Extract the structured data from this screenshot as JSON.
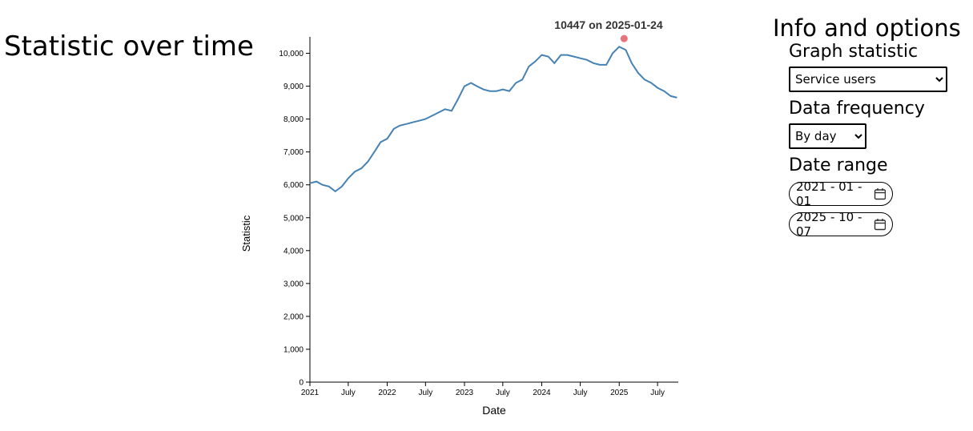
{
  "title": "Statistic over time",
  "panel": {
    "heading": "Info and options",
    "statistic_label": "Graph statistic",
    "statistic_value": "Service users",
    "frequency_label": "Data frequency",
    "frequency_value": "By day",
    "range_label": "Date range",
    "start_date": "2021 - 01 - 01",
    "end_date": "2025 - 10 - 07"
  },
  "chart_data": {
    "type": "line",
    "x_label": "Date",
    "y_label": "Statistic",
    "color": "#4682b4",
    "x": [
      "2021-01",
      "2021-02",
      "2021-03",
      "2021-04",
      "2021-05",
      "2021-06",
      "2021-07",
      "2021-08",
      "2021-09",
      "2021-10",
      "2021-11",
      "2021-12",
      "2022-01",
      "2022-02",
      "2022-03",
      "2022-04",
      "2022-05",
      "2022-06",
      "2022-07",
      "2022-08",
      "2022-09",
      "2022-10",
      "2022-11",
      "2022-12",
      "2023-01",
      "2023-02",
      "2023-03",
      "2023-04",
      "2023-05",
      "2023-06",
      "2023-07",
      "2023-08",
      "2023-09",
      "2023-10",
      "2023-11",
      "2023-12",
      "2024-01",
      "2024-02",
      "2024-03",
      "2024-04",
      "2024-05",
      "2024-06",
      "2024-07",
      "2024-08",
      "2024-09",
      "2024-10",
      "2024-11",
      "2024-12",
      "2025-01",
      "2025-02",
      "2025-03",
      "2025-04",
      "2025-05",
      "2025-06",
      "2025-07",
      "2025-08",
      "2025-09",
      "2025-10"
    ],
    "values": [
      6050,
      6100,
      6000,
      5950,
      5800,
      5950,
      6200,
      6400,
      6500,
      6700,
      7000,
      7300,
      7400,
      7700,
      7800,
      7850,
      7900,
      7950,
      8000,
      8100,
      8200,
      8300,
      8250,
      8600,
      9000,
      9100,
      9000,
      8900,
      8850,
      8850,
      8900,
      8850,
      9100,
      9200,
      9600,
      9750,
      9950,
      9900,
      9700,
      9950,
      9950,
      9900,
      9850,
      9800,
      9700,
      9650,
      9650,
      10000,
      10200,
      10100,
      9700,
      9400,
      9200,
      9100,
      8950,
      8850,
      8700,
      8650
    ],
    "xlim": [
      "2021-01-01",
      "2025-10-07"
    ],
    "xticks": [
      {
        "value": "2021-01",
        "label": "2021"
      },
      {
        "value": "2021-07",
        "label": "July"
      },
      {
        "value": "2022-01",
        "label": "2022"
      },
      {
        "value": "2022-07",
        "label": "July"
      },
      {
        "value": "2023-01",
        "label": "2023"
      },
      {
        "value": "2023-07",
        "label": "July"
      },
      {
        "value": "2024-01",
        "label": "2024"
      },
      {
        "value": "2024-07",
        "label": "July"
      },
      {
        "value": "2025-01",
        "label": "2025"
      },
      {
        "value": "2025-07",
        "label": "July"
      }
    ],
    "ylim": [
      0,
      10500
    ],
    "yticks": [
      0,
      {
        "value": 1000,
        "label": "1,000"
      },
      {
        "value": 2000,
        "label": "2,000"
      },
      {
        "value": 3000,
        "label": "3,000"
      },
      {
        "value": 4000,
        "label": "4,000"
      },
      {
        "value": 5000,
        "label": "5,000"
      },
      {
        "value": 6000,
        "label": "6,000"
      },
      {
        "value": 7000,
        "label": "7,000"
      },
      {
        "value": 8000,
        "label": "8,000"
      },
      {
        "value": 9000,
        "label": "9,000"
      },
      {
        "value": 10000,
        "label": "10,000"
      }
    ],
    "highlight": {
      "value": 10447,
      "date": "2025-01-24",
      "color": "#e8737a",
      "label": "10447 on 2025-01-24"
    }
  }
}
